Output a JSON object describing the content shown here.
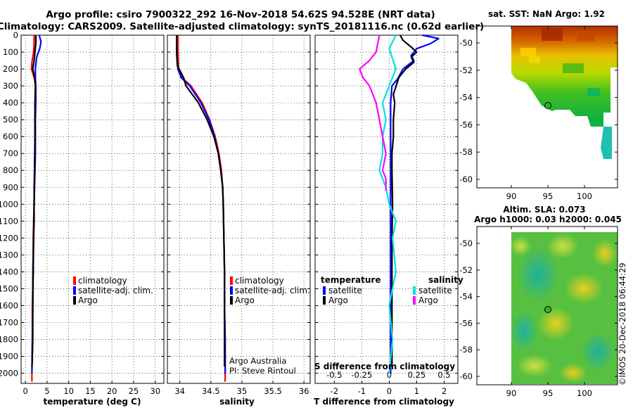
{
  "title_line1": "Argo profile: csiro 7900322_292 16-Nov-2018 54.62S 94.528E (NRT data)",
  "title_line2": "Climatology: CARS2009. Satellite-adjusted climatology: synTS_20181116.nc (0.62d earlier)",
  "colors": {
    "climatology": "#ff0000",
    "satellite": "#0000ff",
    "argo": "#000000",
    "temp_sat_diff": "#0000ff",
    "sal_sat_diff": "#00e0e0",
    "sal_argo_diff": "#ff00ff"
  },
  "chart_data": [
    {
      "type": "line",
      "id": "temperature",
      "xlabel": "temperature (deg C)",
      "xlim": [
        -1,
        32
      ],
      "ylim": [
        2060,
        0
      ],
      "xticks": [
        0,
        5,
        10,
        15,
        20,
        25,
        30
      ],
      "yticks": [
        0,
        100,
        200,
        300,
        400,
        500,
        600,
        700,
        800,
        900,
        1000,
        1100,
        1200,
        1300,
        1400,
        1500,
        1600,
        1700,
        1800,
        1900,
        2000
      ],
      "legend": [
        "climatology",
        "satellite-adj. clim.",
        "Argo"
      ],
      "series": [
        {
          "name": "climatology",
          "color": "#ff0000",
          "x": [
            2.0,
            2.0,
            1.9,
            1.5,
            1.4,
            2.1,
            2.3,
            2.3,
            2.2,
            2.2,
            2.2,
            2.1,
            2.0,
            2.0,
            1.9,
            1.8,
            1.8,
            1.7,
            1.7,
            1.6,
            1.6,
            1.5,
            1.5
          ],
          "y": [
            0,
            40,
            100,
            160,
            200,
            260,
            300,
            400,
            500,
            600,
            700,
            800,
            900,
            1000,
            1100,
            1200,
            1300,
            1400,
            1500,
            1600,
            1800,
            2000,
            2050
          ]
        },
        {
          "name": "satellite-adj. clim.",
          "color": "#0000ff",
          "x": [
            3.2,
            3.6,
            3.3,
            2.6,
            2.3,
            2.3,
            2.4,
            2.4,
            2.3,
            2.3,
            2.3,
            2.2,
            2.1,
            2.0,
            2.0,
            1.9,
            1.8,
            1.8,
            1.7,
            1.7,
            1.6,
            1.5
          ],
          "y": [
            0,
            40,
            80,
            130,
            200,
            260,
            300,
            400,
            500,
            600,
            700,
            800,
            900,
            1000,
            1100,
            1200,
            1300,
            1400,
            1500,
            1600,
            1800,
            2000
          ]
        },
        {
          "name": "Argo",
          "color": "#000000",
          "x": [
            2.4,
            2.4,
            2.2,
            2.0,
            1.7,
            2.2,
            2.3,
            2.2,
            2.2,
            2.1,
            2.0,
            1.9,
            1.8,
            1.7,
            1.7,
            1.6,
            1.5
          ],
          "y": [
            0,
            50,
            100,
            150,
            200,
            260,
            300,
            400,
            600,
            800,
            1000,
            1200,
            1400,
            1600,
            1800,
            1900,
            1960
          ]
        }
      ],
      "annotations": []
    },
    {
      "type": "line",
      "id": "salinity",
      "xlabel": "salinity",
      "xlim": [
        33.8,
        36.1
      ],
      "ylim": [
        2060,
        0
      ],
      "xticks": [
        34,
        34.5,
        35,
        35.5,
        36
      ],
      "xtick_labels": [
        "34",
        "34.5",
        "35",
        "35.5",
        "36"
      ],
      "legend": [
        "climatology",
        "satellite-adj. clim.",
        "Argo"
      ],
      "series": [
        {
          "name": "climatology",
          "color": "#ff0000",
          "x": [
            33.97,
            33.97,
            33.98,
            34.03,
            34.18,
            34.36,
            34.48,
            34.57,
            34.63,
            34.67,
            34.69,
            34.7,
            34.71,
            34.72,
            34.72,
            34.73,
            34.73,
            34.73
          ],
          "y": [
            0,
            100,
            200,
            250,
            300,
            400,
            500,
            600,
            700,
            800,
            900,
            1000,
            1200,
            1400,
            1600,
            1800,
            2000,
            2050
          ]
        },
        {
          "name": "satellite-adj. clim.",
          "color": "#0000ff",
          "x": [
            33.95,
            33.95,
            33.97,
            34.02,
            34.16,
            34.34,
            34.47,
            34.56,
            34.62,
            34.66,
            34.69,
            34.7,
            34.71,
            34.72,
            34.72,
            34.73,
            34.73
          ],
          "y": [
            0,
            100,
            200,
            250,
            300,
            400,
            500,
            600,
            700,
            800,
            900,
            1000,
            1200,
            1400,
            1600,
            1800,
            2000
          ]
        },
        {
          "name": "Argo",
          "color": "#000000",
          "x": [
            33.95,
            33.95,
            33.96,
            34.06,
            34.1,
            34.3,
            34.44,
            34.55,
            34.62,
            34.66,
            34.69,
            34.7,
            34.71,
            34.72,
            34.72,
            34.72
          ],
          "y": [
            0,
            100,
            180,
            250,
            300,
            400,
            500,
            600,
            700,
            800,
            900,
            1000,
            1200,
            1400,
            1600,
            1960
          ]
        }
      ],
      "annotations": [
        "Argo Australia",
        "PI: Steve Rintoul"
      ]
    },
    {
      "type": "line",
      "id": "difference",
      "xlabel": "T difference from climatology",
      "xlim": [
        -2.7,
        2.5
      ],
      "ylim": [
        2060,
        0
      ],
      "xticks": [
        -2,
        -1,
        0,
        1,
        2
      ],
      "top_axis_label": "S difference from climatology",
      "top_xticks": [
        -0.5,
        -0.25,
        0,
        0.25,
        0.5
      ],
      "top_xtick_labels": [
        "-0.5",
        "-0.25",
        "0",
        "0.25",
        "0.5"
      ],
      "legend_temperature": {
        "heading": "temperature",
        "items": [
          "satellite",
          "Argo"
        ]
      },
      "legend_salinity": {
        "heading": "salinity",
        "items": [
          "satellite",
          "Argo"
        ]
      },
      "series": [
        {
          "name": "temperature satellite",
          "color": "#0000ff",
          "x": [
            1.2,
            1.8,
            1.5,
            1.0,
            0.8,
            0.9,
            0.5,
            0.3,
            0.1,
            0.05,
            0.05,
            0.05,
            0.05,
            0.05,
            0.05,
            0.05
          ],
          "y": [
            0,
            20,
            50,
            80,
            120,
            150,
            200,
            260,
            300,
            400,
            600,
            800,
            1000,
            1200,
            1600,
            2000
          ]
        },
        {
          "name": "temperature Argo",
          "color": "#000000",
          "x": [
            0.4,
            0.5,
            0.8,
            1.0,
            0.8,
            0.9,
            0.6,
            0.35,
            0.25,
            0.15,
            0.2,
            0.15,
            0.15,
            0.1,
            0.1,
            0.12,
            0.1,
            0.1,
            0.1,
            0.1
          ],
          "y": [
            0,
            30,
            70,
            100,
            130,
            160,
            200,
            250,
            300,
            350,
            400,
            500,
            600,
            700,
            800,
            1000,
            1200,
            1500,
            1800,
            1960
          ]
        },
        {
          "name": "salinity satellite",
          "color": "#00e0e0",
          "x": [
            0.06,
            0.0,
            0.06,
            0.0,
            -0.06,
            -0.03,
            -0.06,
            -0.06,
            -0.09,
            -0.03,
            0.0,
            0.06,
            0.03,
            0.06,
            0.0,
            0.03,
            0.0
          ],
          "y": [
            0,
            80,
            200,
            300,
            400,
            500,
            600,
            700,
            800,
            900,
            1000,
            1100,
            1200,
            1400,
            1600,
            1800,
            2000
          ]
        },
        {
          "name": "salinity Argo",
          "color": "#ff00ff",
          "x": [
            -0.09,
            -0.12,
            -0.18,
            -0.27,
            -0.24,
            -0.18,
            -0.12,
            -0.09,
            -0.06,
            -0.03,
            -0.06,
            -0.03,
            -0.03,
            -0.03
          ],
          "y": [
            0,
            100,
            150,
            200,
            250,
            300,
            400,
            500,
            600,
            700,
            800,
            850,
            900,
            920
          ]
        }
      ],
      "annotations": []
    }
  ],
  "map_sst": {
    "title": "sat. SST: NaN Argo: 1.92",
    "xticks": [
      "90",
      "95",
      "100"
    ],
    "yticks": [
      "-50",
      "-52",
      "-54",
      "-56",
      "-58",
      "-60"
    ]
  },
  "map_sla": {
    "title_line1": "Altim. SLA: 0.073",
    "title_line2": "Argo h1000: 0.03 h2000: 0.045",
    "xticks": [
      "90",
      "95",
      "100"
    ],
    "yticks": [
      "-50",
      "-52",
      "-54",
      "-56",
      "-58",
      "-60"
    ]
  },
  "credit": "©IMOS 20-Dec-2018 06:44:29"
}
